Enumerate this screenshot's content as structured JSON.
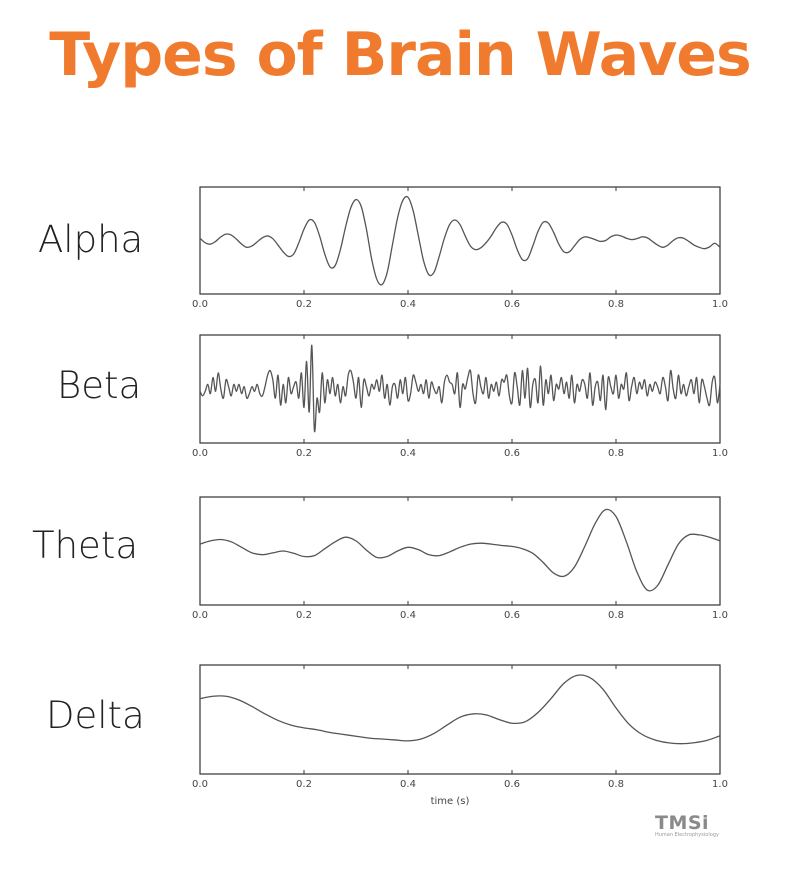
{
  "title": "Types of Brain Waves",
  "logo": {
    "name": "TMSi",
    "tagline": "Human Electrophysiology"
  },
  "colors": {
    "title": "#f07b2e",
    "line": "#555555"
  },
  "chart_data": [
    {
      "type": "line",
      "name": "Alpha",
      "xlim": [
        0.0,
        1.0
      ],
      "xticks": [
        "0.0",
        "0.2",
        "0.4",
        "0.6",
        "0.8",
        "1.0"
      ],
      "xlabel": "",
      "x": [
        0.0,
        0.01,
        0.02,
        0.03,
        0.04,
        0.05,
        0.06,
        0.07,
        0.08,
        0.09,
        0.1,
        0.11,
        0.12,
        0.13,
        0.14,
        0.15,
        0.16,
        0.17,
        0.18,
        0.19,
        0.2,
        0.21,
        0.22,
        0.23,
        0.24,
        0.25,
        0.26,
        0.27,
        0.28,
        0.29,
        0.3,
        0.31,
        0.32,
        0.33,
        0.34,
        0.35,
        0.36,
        0.37,
        0.38,
        0.39,
        0.4,
        0.41,
        0.42,
        0.43,
        0.44,
        0.45,
        0.46,
        0.47,
        0.48,
        0.49,
        0.5,
        0.51,
        0.52,
        0.53,
        0.54,
        0.55,
        0.56,
        0.57,
        0.58,
        0.59,
        0.6,
        0.61,
        0.62,
        0.63,
        0.64,
        0.65,
        0.66,
        0.67,
        0.68,
        0.69,
        0.7,
        0.71,
        0.72,
        0.73,
        0.74,
        0.75,
        0.76,
        0.77,
        0.78,
        0.79,
        0.8,
        0.81,
        0.82,
        0.83,
        0.84,
        0.85,
        0.86,
        0.87,
        0.88,
        0.89,
        0.9,
        0.91,
        0.92,
        0.93,
        0.94,
        0.95,
        0.96,
        0.97,
        0.98,
        0.99,
        1.0
      ],
      "y": [
        0.05,
        -0.05,
        -0.08,
        -0.02,
        0.08,
        0.14,
        0.12,
        0.03,
        -0.08,
        -0.15,
        -0.12,
        -0.03,
        0.06,
        0.1,
        0.04,
        -0.1,
        -0.25,
        -0.35,
        -0.3,
        -0.05,
        0.25,
        0.45,
        0.4,
        0.1,
        -0.3,
        -0.58,
        -0.55,
        -0.2,
        0.3,
        0.72,
        0.9,
        0.75,
        0.25,
        -0.4,
        -0.85,
        -0.97,
        -0.7,
        -0.1,
        0.5,
        0.88,
        0.95,
        0.65,
        0.1,
        -0.45,
        -0.75,
        -0.7,
        -0.35,
        0.05,
        0.35,
        0.45,
        0.35,
        0.1,
        -0.12,
        -0.2,
        -0.16,
        -0.05,
        0.1,
        0.28,
        0.4,
        0.36,
        0.12,
        -0.2,
        -0.42,
        -0.4,
        -0.12,
        0.2,
        0.4,
        0.38,
        0.18,
        -0.08,
        -0.25,
        -0.25,
        -0.12,
        0.02,
        0.08,
        0.06,
        0.02,
        -0.02,
        0.0,
        0.08,
        0.12,
        0.1,
        0.05,
        0.02,
        0.04,
        0.08,
        0.06,
        -0.02,
        -0.1,
        -0.15,
        -0.1,
        0.0,
        0.06,
        0.05,
        -0.02,
        -0.1,
        -0.15,
        -0.18,
        -0.14,
        -0.06,
        -0.15
      ]
    },
    {
      "type": "line",
      "name": "Beta",
      "xlim": [
        0.0,
        1.0
      ],
      "xticks": [
        "0.0",
        "0.2",
        "0.4",
        "0.6",
        "0.8",
        "1.0"
      ],
      "xlabel": "",
      "x": [
        0.0,
        0.005,
        0.01,
        0.015,
        0.02,
        0.025,
        0.03,
        0.035,
        0.04,
        0.045,
        0.05,
        0.055,
        0.06,
        0.065,
        0.07,
        0.075,
        0.08,
        0.085,
        0.09,
        0.095,
        0.1,
        0.105,
        0.11,
        0.115,
        0.12,
        0.125,
        0.13,
        0.135,
        0.14,
        0.145,
        0.15,
        0.155,
        0.16,
        0.165,
        0.17,
        0.175,
        0.18,
        0.185,
        0.19,
        0.195,
        0.2,
        0.205,
        0.21,
        0.215,
        0.22,
        0.225,
        0.23,
        0.235,
        0.24,
        0.245,
        0.25,
        0.255,
        0.26,
        0.265,
        0.27,
        0.275,
        0.28,
        0.285,
        0.29,
        0.295,
        0.3,
        0.305,
        0.31,
        0.315,
        0.32,
        0.325,
        0.33,
        0.335,
        0.34,
        0.345,
        0.35,
        0.355,
        0.36,
        0.365,
        0.37,
        0.375,
        0.38,
        0.385,
        0.39,
        0.395,
        0.4,
        0.405,
        0.41,
        0.415,
        0.42,
        0.425,
        0.43,
        0.435,
        0.44,
        0.445,
        0.45,
        0.455,
        0.46,
        0.465,
        0.47,
        0.475,
        0.48,
        0.485,
        0.49,
        0.495,
        0.5,
        0.505,
        0.51,
        0.515,
        0.52,
        0.525,
        0.53,
        0.535,
        0.54,
        0.545,
        0.55,
        0.555,
        0.56,
        0.565,
        0.57,
        0.575,
        0.58,
        0.585,
        0.59,
        0.595,
        0.6,
        0.605,
        0.61,
        0.615,
        0.62,
        0.625,
        0.63,
        0.635,
        0.64,
        0.645,
        0.65,
        0.655,
        0.66,
        0.665,
        0.67,
        0.675,
        0.68,
        0.685,
        0.69,
        0.695,
        0.7,
        0.705,
        0.71,
        0.715,
        0.72,
        0.725,
        0.73,
        0.735,
        0.74,
        0.745,
        0.75,
        0.755,
        0.76,
        0.765,
        0.77,
        0.775,
        0.78,
        0.785,
        0.79,
        0.795,
        0.8,
        0.805,
        0.81,
        0.815,
        0.82,
        0.825,
        0.83,
        0.835,
        0.84,
        0.845,
        0.85,
        0.855,
        0.86,
        0.865,
        0.87,
        0.875,
        0.88,
        0.885,
        0.89,
        0.895,
        0.9,
        0.905,
        0.91,
        0.915,
        0.92,
        0.925,
        0.93,
        0.935,
        0.94,
        0.945,
        0.95,
        0.955,
        0.96,
        0.965,
        0.97,
        0.975,
        0.98,
        0.985,
        0.99,
        0.995,
        1.0
      ],
      "y": [
        -0.05,
        -0.15,
        -0.05,
        0.1,
        -0.1,
        0.25,
        -0.05,
        0.35,
        0.0,
        -0.2,
        0.2,
        0.05,
        -0.15,
        0.1,
        -0.05,
        0.1,
        -0.1,
        0.05,
        -0.2,
        -0.1,
        0.05,
        -0.05,
        0.1,
        -0.1,
        -0.15,
        0.05,
        0.3,
        0.4,
        0.2,
        -0.2,
        0.3,
        -0.35,
        0.1,
        -0.3,
        0.25,
        -0.1,
        0.05,
        0.15,
        -0.2,
        0.35,
        -0.4,
        0.6,
        -0.5,
        0.95,
        -0.9,
        -0.2,
        -0.5,
        0.35,
        -0.3,
        0.2,
        -0.1,
        0.25,
        -0.15,
        0.1,
        -0.3,
        0.05,
        -0.15,
        0.3,
        0.4,
        0.15,
        -0.2,
        0.25,
        -0.4,
        0.2,
        0.05,
        -0.15,
        0.1,
        0.0,
        0.2,
        -0.05,
        0.3,
        -0.2,
        0.1,
        -0.35,
        0.05,
        0.1,
        -0.2,
        0.2,
        -0.1,
        0.25,
        -0.25,
        -0.1,
        0.3,
        0.15,
        -0.05,
        0.1,
        -0.1,
        0.2,
        -0.2,
        0.15,
        0.0,
        -0.1,
        0.05,
        -0.3,
        0.15,
        0.3,
        0.15,
        0.1,
        -0.1,
        0.35,
        -0.4,
        0.1,
        0.0,
        0.25,
        0.4,
        -0.1,
        -0.3,
        0.3,
        0.05,
        -0.1,
        0.25,
        -0.2,
        0.1,
        -0.05,
        0.15,
        -0.15,
        0.2,
        0.15,
        0.3,
        -0.15,
        -0.3,
        0.35,
        0.05,
        -0.35,
        0.4,
        -0.2,
        0.45,
        -0.4,
        0.1,
        0.2,
        -0.3,
        0.5,
        -0.35,
        0.2,
        -0.1,
        0.3,
        -0.25,
        0.1,
        0.0,
        0.25,
        -0.1,
        0.15,
        -0.2,
        0.3,
        -0.3,
        0.1,
        -0.05,
        0.2,
        0.1,
        -0.2,
        0.35,
        -0.35,
        0.05,
        0.15,
        -0.25,
        0.3,
        -0.45,
        0.25,
        0.05,
        -0.1,
        0.3,
        -0.2,
        0.1,
        0.0,
        0.35,
        -0.25,
        0.05,
        0.25,
        -0.1,
        0.15,
        0.0,
        0.2,
        -0.15,
        0.1,
        -0.05,
        0.15,
        0.05,
        -0.1,
        0.25,
        0.05,
        -0.25,
        0.4,
        0.0,
        -0.2,
        0.3,
        -0.1,
        0.1,
        -0.15,
        0.05,
        0.2,
        -0.1,
        0.25,
        -0.3,
        0.2,
        0.05,
        -0.2,
        -0.35,
        0.15,
        0.25,
        -0.3,
        0.1
      ]
    },
    {
      "type": "line",
      "name": "Theta",
      "xlim": [
        0.0,
        1.0
      ],
      "xticks": [
        "0.0",
        "0.2",
        "0.4",
        "0.6",
        "0.8",
        "1.0"
      ],
      "xlabel": "",
      "x": [
        0.0,
        0.02,
        0.04,
        0.06,
        0.08,
        0.1,
        0.12,
        0.14,
        0.16,
        0.18,
        0.2,
        0.22,
        0.24,
        0.26,
        0.28,
        0.3,
        0.32,
        0.34,
        0.36,
        0.38,
        0.4,
        0.42,
        0.44,
        0.46,
        0.48,
        0.5,
        0.52,
        0.54,
        0.56,
        0.58,
        0.6,
        0.62,
        0.64,
        0.66,
        0.68,
        0.7,
        0.72,
        0.74,
        0.76,
        0.78,
        0.8,
        0.82,
        0.84,
        0.86,
        0.88,
        0.9,
        0.92,
        0.94,
        0.96,
        0.98,
        1.0
      ],
      "y": [
        0.15,
        0.22,
        0.25,
        0.2,
        0.08,
        -0.04,
        -0.08,
        -0.04,
        0.0,
        -0.05,
        -0.12,
        -0.1,
        0.05,
        0.2,
        0.3,
        0.22,
        0.02,
        -0.14,
        -0.12,
        0.0,
        0.08,
        0.03,
        -0.08,
        -0.1,
        -0.02,
        0.08,
        0.15,
        0.17,
        0.15,
        0.12,
        0.1,
        0.05,
        -0.05,
        -0.25,
        -0.48,
        -0.55,
        -0.35,
        0.1,
        0.6,
        0.9,
        0.75,
        0.2,
        -0.45,
        -0.85,
        -0.75,
        -0.3,
        0.15,
        0.35,
        0.35,
        0.3,
        0.22
      ]
    },
    {
      "type": "line",
      "name": "Delta",
      "xlim": [
        0.0,
        1.0
      ],
      "xticks": [
        "0.0",
        "0.2",
        "0.4",
        "0.6",
        "0.8",
        "1.0"
      ],
      "xlabel": "time (s)",
      "x": [
        0.0,
        0.025,
        0.05,
        0.075,
        0.1,
        0.125,
        0.15,
        0.175,
        0.2,
        0.225,
        0.25,
        0.275,
        0.3,
        0.325,
        0.35,
        0.375,
        0.4,
        0.425,
        0.45,
        0.475,
        0.5,
        0.525,
        0.55,
        0.575,
        0.6,
        0.625,
        0.65,
        0.675,
        0.7,
        0.725,
        0.75,
        0.775,
        0.8,
        0.825,
        0.85,
        0.875,
        0.9,
        0.925,
        0.95,
        0.975,
        1.0
      ],
      "y": [
        0.45,
        0.5,
        0.5,
        0.42,
        0.28,
        0.12,
        -0.02,
        -0.12,
        -0.18,
        -0.22,
        -0.28,
        -0.32,
        -0.36,
        -0.4,
        -0.42,
        -0.44,
        -0.46,
        -0.42,
        -0.3,
        -0.12,
        0.05,
        0.12,
        0.1,
        0.0,
        -0.08,
        -0.05,
        0.15,
        0.45,
        0.78,
        0.95,
        0.9,
        0.65,
        0.25,
        -0.1,
        -0.32,
        -0.44,
        -0.5,
        -0.52,
        -0.5,
        -0.45,
        -0.35
      ]
    }
  ]
}
